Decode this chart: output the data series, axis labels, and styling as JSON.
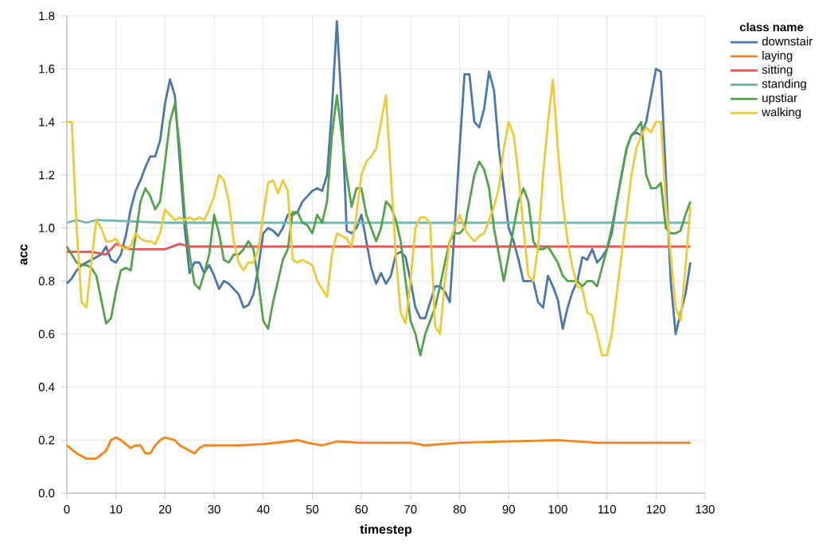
{
  "chart_data": {
    "type": "line",
    "xlabel": "timestep",
    "ylabel": "acc",
    "legend_title": "class name",
    "legend": "right",
    "grid": true,
    "xlim": [
      0,
      130
    ],
    "ylim": [
      0,
      1.8
    ],
    "xticks": [
      0,
      10,
      20,
      30,
      40,
      50,
      60,
      70,
      80,
      90,
      100,
      110,
      120,
      130
    ],
    "yticks": [
      {
        "value": 0,
        "label": "0.0"
      },
      {
        "value": 0.2,
        "label": "0.2"
      },
      {
        "value": 0.4,
        "label": "0.4"
      },
      {
        "value": 0.6,
        "label": "0.6"
      },
      {
        "value": 0.8,
        "label": "0.8"
      },
      {
        "value": 1.0,
        "label": "1.0"
      },
      {
        "value": 1.2,
        "label": "1.2"
      },
      {
        "value": 1.4,
        "label": "1.4"
      },
      {
        "value": 1.6,
        "label": "1.6"
      },
      {
        "value": 1.8,
        "label": "1.8"
      }
    ],
    "x": [
      0,
      1,
      2,
      3,
      4,
      5,
      6,
      7,
      8,
      9,
      10,
      11,
      12,
      13,
      14,
      15,
      16,
      17,
      18,
      19,
      20,
      21,
      22,
      23,
      24,
      25,
      26,
      27,
      28,
      29,
      30,
      31,
      32,
      33,
      34,
      35,
      36,
      37,
      38,
      39,
      40,
      41,
      42,
      43,
      44,
      45,
      46,
      47,
      48,
      49,
      50,
      51,
      52,
      53,
      54,
      55,
      56,
      57,
      58,
      59,
      60,
      61,
      62,
      63,
      64,
      65,
      66,
      67,
      68,
      69,
      70,
      71,
      72,
      73,
      74,
      75,
      76,
      77,
      78,
      79,
      80,
      81,
      82,
      83,
      84,
      85,
      86,
      87,
      88,
      89,
      90,
      91,
      92,
      93,
      94,
      95,
      96,
      97,
      98,
      99,
      100,
      101,
      102,
      103,
      104,
      105,
      106,
      107,
      108,
      109,
      110,
      111,
      112,
      113,
      114,
      115,
      116,
      117,
      118,
      119,
      120,
      121,
      122,
      123,
      124,
      125,
      126,
      127
    ],
    "series": [
      {
        "name": "downstair",
        "color": "#4c78a8",
        "values": [
          0.79,
          0.81,
          0.84,
          0.86,
          0.87,
          0.88,
          0.89,
          0.9,
          0.93,
          0.88,
          0.87,
          0.9,
          0.97,
          1.07,
          1.14,
          1.18,
          1.23,
          1.27,
          1.27,
          1.33,
          1.47,
          1.56,
          1.5,
          1.25,
          1.0,
          0.83,
          0.87,
          0.87,
          0.83,
          0.86,
          0.82,
          0.77,
          0.8,
          0.79,
          0.77,
          0.75,
          0.7,
          0.71,
          0.75,
          0.85,
          0.98,
          1.0,
          0.99,
          0.97,
          1.0,
          1.05,
          1.05,
          1.06,
          1.1,
          1.12,
          1.14,
          1.15,
          1.14,
          1.2,
          1.45,
          1.78,
          1.45,
          0.99,
          0.98,
          1.0,
          1.05,
          0.95,
          0.85,
          0.79,
          0.83,
          0.79,
          0.82,
          0.9,
          0.91,
          0.89,
          0.8,
          0.7,
          0.66,
          0.66,
          0.72,
          0.78,
          0.78,
          0.76,
          0.72,
          1.0,
          1.3,
          1.58,
          1.58,
          1.4,
          1.38,
          1.45,
          1.59,
          1.52,
          1.3,
          1.15,
          1.0,
          0.95,
          0.88,
          0.8,
          0.8,
          0.8,
          0.72,
          0.7,
          0.82,
          0.78,
          0.73,
          0.62,
          0.7,
          0.76,
          0.8,
          0.89,
          0.88,
          0.92,
          0.87,
          0.89,
          0.92,
          0.98,
          1.1,
          1.2,
          1.3,
          1.35,
          1.36,
          1.35,
          1.4,
          1.5,
          1.6,
          1.59,
          1.2,
          0.8,
          0.6,
          0.68,
          0.75,
          0.87
        ]
      },
      {
        "name": "laying",
        "color": "#f58518",
        "x": [
          0,
          2,
          4,
          6,
          8,
          9,
          10,
          11,
          13,
          14,
          15,
          16,
          17,
          18,
          19,
          20,
          22,
          23,
          25,
          26,
          27,
          28,
          35,
          40,
          45,
          47,
          49,
          52,
          55,
          60,
          70,
          73,
          80,
          100,
          108,
          127
        ],
        "values": [
          0.18,
          0.15,
          0.13,
          0.13,
          0.16,
          0.2,
          0.21,
          0.2,
          0.17,
          0.18,
          0.18,
          0.15,
          0.15,
          0.18,
          0.2,
          0.21,
          0.2,
          0.18,
          0.16,
          0.15,
          0.17,
          0.18,
          0.18,
          0.185,
          0.195,
          0.2,
          0.19,
          0.18,
          0.195,
          0.19,
          0.19,
          0.18,
          0.19,
          0.2,
          0.19,
          0.19
        ]
      },
      {
        "name": "sitting",
        "color": "#e45756",
        "x": [
          0,
          5,
          8,
          10,
          13,
          20,
          23,
          25,
          40,
          60,
          80,
          100,
          127
        ],
        "values": [
          0.91,
          0.91,
          0.9,
          0.94,
          0.92,
          0.92,
          0.94,
          0.93,
          0.93,
          0.93,
          0.93,
          0.93,
          0.93
        ]
      },
      {
        "name": "standing",
        "color": "#72b7b2",
        "x": [
          0,
          2,
          4,
          6,
          20,
          40,
          60,
          80,
          100,
          127
        ],
        "values": [
          1.02,
          1.03,
          1.02,
          1.03,
          1.02,
          1.02,
          1.02,
          1.02,
          1.02,
          1.02
        ]
      },
      {
        "name": "upstiar",
        "color": "#54a24b",
        "values": [
          0.93,
          0.9,
          0.87,
          0.86,
          0.86,
          0.85,
          0.82,
          0.73,
          0.64,
          0.66,
          0.76,
          0.84,
          0.85,
          0.84,
          0.97,
          1.1,
          1.15,
          1.12,
          1.07,
          1.1,
          1.25,
          1.4,
          1.47,
          1.3,
          1.05,
          0.9,
          0.79,
          0.77,
          0.83,
          0.9,
          1.05,
          0.98,
          0.88,
          0.87,
          0.9,
          0.9,
          0.92,
          0.95,
          0.92,
          0.8,
          0.65,
          0.62,
          0.72,
          0.8,
          0.88,
          0.92,
          1.06,
          1.06,
          1.02,
          1.01,
          0.98,
          1.05,
          1.02,
          1.1,
          1.35,
          1.5,
          1.35,
          1.2,
          1.08,
          1.15,
          1.15,
          1.05,
          1.0,
          0.95,
          1.0,
          1.1,
          1.08,
          1.03,
          0.95,
          0.8,
          0.65,
          0.6,
          0.52,
          0.6,
          0.65,
          0.7,
          0.78,
          0.87,
          0.95,
          0.98,
          0.98,
          1.0,
          1.1,
          1.2,
          1.25,
          1.22,
          1.15,
          1.0,
          0.9,
          0.8,
          0.9,
          1.0,
          1.1,
          1.15,
          1.1,
          0.95,
          0.92,
          0.92,
          0.93,
          0.9,
          0.87,
          0.82,
          0.8,
          0.8,
          0.8,
          0.78,
          0.8,
          0.8,
          0.78,
          0.85,
          0.92,
          1.0,
          1.1,
          1.2,
          1.3,
          1.35,
          1.37,
          1.4,
          1.2,
          1.15,
          1.15,
          1.17,
          1.0,
          0.98,
          0.98,
          0.99,
          1.05,
          1.1
        ]
      },
      {
        "name": "walking",
        "color": "#eeca3b",
        "values": [
          1.4,
          1.4,
          1.0,
          0.72,
          0.7,
          0.87,
          1.03,
          1.0,
          0.95,
          0.95,
          0.96,
          0.93,
          0.92,
          0.93,
          0.98,
          0.96,
          0.95,
          0.95,
          0.94,
          0.98,
          1.07,
          1.05,
          1.03,
          1.04,
          1.03,
          1.04,
          1.03,
          1.04,
          1.03,
          1.07,
          1.12,
          1.2,
          1.18,
          1.1,
          0.95,
          0.87,
          0.84,
          0.87,
          0.87,
          0.92,
          1.05,
          1.17,
          1.18,
          1.13,
          1.18,
          1.14,
          0.88,
          0.87,
          0.88,
          0.87,
          0.86,
          0.8,
          0.77,
          0.74,
          0.9,
          0.98,
          0.97,
          0.96,
          0.93,
          1.05,
          1.2,
          1.25,
          1.27,
          1.3,
          1.4,
          1.5,
          1.2,
          0.9,
          0.68,
          0.64,
          0.8,
          1.0,
          1.04,
          1.04,
          1.02,
          0.63,
          0.6,
          0.8,
          0.95,
          1.0,
          1.05,
          1.0,
          0.97,
          0.95,
          0.97,
          0.98,
          1.03,
          1.08,
          1.15,
          1.3,
          1.4,
          1.35,
          1.2,
          1.0,
          0.82,
          0.8,
          0.93,
          1.2,
          1.4,
          1.56,
          1.3,
          1.1,
          0.95,
          0.85,
          0.78,
          0.77,
          0.68,
          0.67,
          0.6,
          0.52,
          0.52,
          0.6,
          0.75,
          0.9,
          1.05,
          1.2,
          1.3,
          1.35,
          1.38,
          1.36,
          1.4,
          1.4,
          1.1,
          0.9,
          0.7,
          0.65,
          0.85,
          1.08
        ]
      }
    ]
  }
}
